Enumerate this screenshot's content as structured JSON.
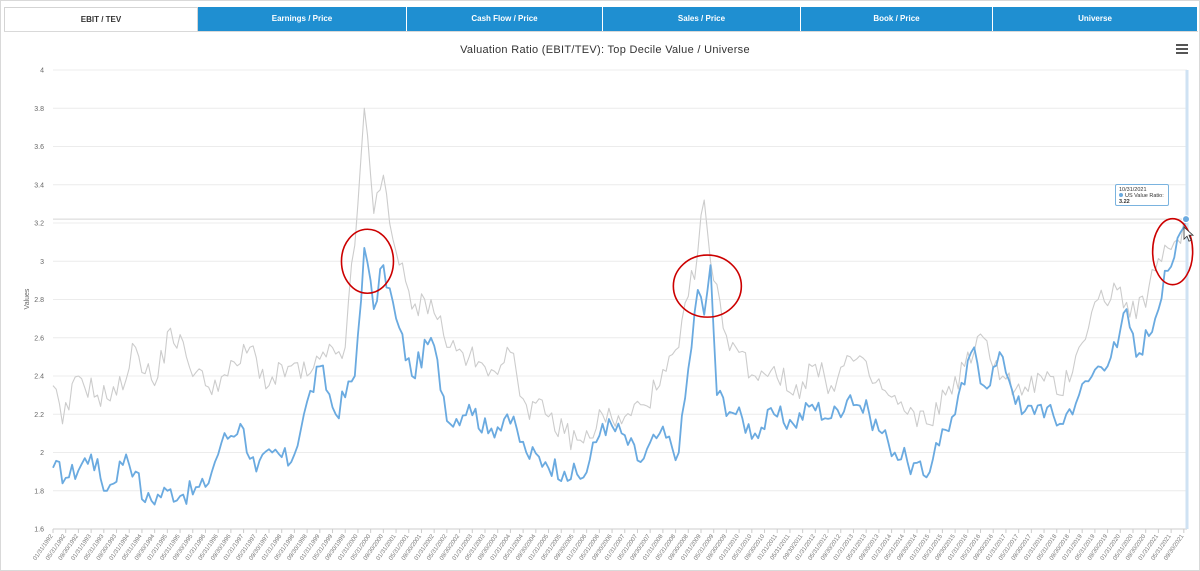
{
  "tabs": [
    {
      "label": "EBIT / TEV",
      "active": true
    },
    {
      "label": "Earnings / Price",
      "active": false
    },
    {
      "label": "Cash Flow / Price",
      "active": false
    },
    {
      "label": "Sales / Price",
      "active": false
    },
    {
      "label": "Book / Price",
      "active": false
    },
    {
      "label": "Universe",
      "active": false
    }
  ],
  "colors": {
    "accent": "#1f8fd1",
    "series_top_decile": "#6aaae0",
    "series_us": "#cccccc",
    "annotation": "#cc0000"
  },
  "tooltip": {
    "date": "10/31/2021",
    "label": "US Value Ratio:",
    "value": "3.22"
  },
  "chart_data": {
    "type": "line",
    "title": "Valuation Ratio (EBIT/TEV): Top Decile Value / Universe",
    "ylabel": "Values",
    "xlabel": "",
    "ylim": [
      1.6,
      4.0
    ],
    "yticks": [
      1.6,
      1.8,
      2,
      2.2,
      2.4,
      2.6,
      2.8,
      3,
      3.2,
      3.4,
      3.6,
      3.8,
      4
    ],
    "grid": true,
    "legend": "none",
    "x_start": "1992-01",
    "x_end": "2021-10",
    "x_tick_labels": [
      "01/31/1992",
      "05/31/1992",
      "09/30/1992",
      "01/31/1993",
      "05/31/1993",
      "09/30/1993",
      "01/31/1994",
      "05/31/1994",
      "09/30/1994",
      "01/31/1995",
      "05/31/1995",
      "09/30/1995",
      "01/31/1996",
      "05/31/1996",
      "09/30/1996",
      "01/31/1997",
      "05/31/1997",
      "09/30/1997",
      "01/31/1998",
      "05/31/1998",
      "09/30/1998",
      "01/31/1999",
      "05/31/1999",
      "09/30/1999",
      "01/31/2000",
      "05/31/2000",
      "09/30/2000",
      "01/31/2001",
      "05/31/2001",
      "09/30/2001",
      "01/31/2002",
      "05/31/2002",
      "09/30/2002",
      "01/31/2003",
      "05/31/2003",
      "09/30/2003",
      "01/31/2004",
      "05/31/2004",
      "09/30/2004",
      "01/31/2005",
      "05/31/2005",
      "09/30/2005",
      "01/31/2006",
      "05/31/2006",
      "09/30/2006",
      "01/31/2007",
      "05/31/2007",
      "09/30/2007",
      "01/31/2008",
      "05/31/2008",
      "09/30/2008",
      "01/31/2009",
      "05/31/2009",
      "09/30/2009",
      "01/31/2010",
      "05/31/2010",
      "09/30/2010",
      "01/31/2011",
      "05/31/2011",
      "09/30/2011",
      "01/31/2012",
      "05/31/2012",
      "09/30/2012",
      "01/31/2013",
      "05/31/2013",
      "09/30/2013",
      "01/31/2014",
      "05/31/2014",
      "09/30/2014",
      "01/31/2015",
      "05/31/2015",
      "09/30/2015",
      "01/31/2016",
      "05/31/2016",
      "09/30/2016",
      "01/31/2017",
      "05/31/2017",
      "09/30/2017",
      "01/31/2018",
      "05/31/2018",
      "09/30/2018",
      "01/31/2019",
      "05/31/2019",
      "09/30/2019",
      "01/31/2020",
      "05/31/2020",
      "09/30/2020",
      "01/31/2021",
      "05/31/2021",
      "09/30/2021"
    ],
    "series": [
      {
        "name": "",
        "color": "#6aaae0",
        "anchors": [
          [
            "1992-01",
            1.92
          ],
          [
            "1992-06",
            1.87
          ],
          [
            "1993-01",
            1.99
          ],
          [
            "1993-06",
            1.8
          ],
          [
            "1993-12",
            1.99
          ],
          [
            "1994-03",
            1.9
          ],
          [
            "1994-06",
            1.74
          ],
          [
            "1995-01",
            1.8
          ],
          [
            "1995-06",
            1.78
          ],
          [
            "1996-01",
            1.82
          ],
          [
            "1996-06",
            2.05
          ],
          [
            "1996-12",
            2.15
          ],
          [
            "1997-05",
            1.9
          ],
          [
            "1997-10",
            2.0
          ],
          [
            "1998-04",
            1.95
          ],
          [
            "1998-08",
            2.2
          ],
          [
            "1999-01",
            2.45
          ],
          [
            "1999-06",
            2.2
          ],
          [
            "1999-12",
            2.4
          ],
          [
            "2000-03",
            3.07
          ],
          [
            "2000-06",
            2.75
          ],
          [
            "2000-09",
            2.98
          ],
          [
            "2001-01",
            2.7
          ],
          [
            "2001-06",
            2.4
          ],
          [
            "2001-12",
            2.6
          ],
          [
            "2002-06",
            2.15
          ],
          [
            "2002-12",
            2.25
          ],
          [
            "2003-06",
            2.1
          ],
          [
            "2003-12",
            2.2
          ],
          [
            "2004-06",
            2.0
          ],
          [
            "2004-12",
            1.95
          ],
          [
            "2005-06",
            1.9
          ],
          [
            "2005-12",
            1.87
          ],
          [
            "2006-06",
            2.15
          ],
          [
            "2006-12",
            2.1
          ],
          [
            "2007-06",
            1.95
          ],
          [
            "2007-12",
            2.1
          ],
          [
            "2008-06",
            2.0
          ],
          [
            "2008-12",
            2.85
          ],
          [
            "2009-02",
            2.72
          ],
          [
            "2009-04",
            2.98
          ],
          [
            "2009-06",
            2.3
          ],
          [
            "2009-12",
            2.2
          ],
          [
            "2010-06",
            2.1
          ],
          [
            "2010-12",
            2.2
          ],
          [
            "2011-06",
            2.15
          ],
          [
            "2011-12",
            2.25
          ],
          [
            "2012-06",
            2.18
          ],
          [
            "2012-12",
            2.3
          ],
          [
            "2013-06",
            2.2
          ],
          [
            "2013-12",
            2.05
          ],
          [
            "2014-06",
            1.95
          ],
          [
            "2014-12",
            1.87
          ],
          [
            "2015-03",
            2.05
          ],
          [
            "2015-09",
            2.2
          ],
          [
            "2016-03",
            2.55
          ],
          [
            "2016-06",
            2.35
          ],
          [
            "2016-12",
            2.5
          ],
          [
            "2017-06",
            2.2
          ],
          [
            "2017-12",
            2.25
          ],
          [
            "2018-06",
            2.15
          ],
          [
            "2018-12",
            2.3
          ],
          [
            "2019-06",
            2.45
          ],
          [
            "2019-12",
            2.55
          ],
          [
            "2020-03",
            2.75
          ],
          [
            "2020-06",
            2.5
          ],
          [
            "2020-12",
            2.7
          ],
          [
            "2021-03",
            2.95
          ],
          [
            "2021-06",
            3.02
          ],
          [
            "2021-10",
            3.22
          ]
        ]
      },
      {
        "name": "",
        "color": "#cccccc",
        "anchors": [
          [
            "1992-01",
            2.35
          ],
          [
            "1992-04",
            2.15
          ],
          [
            "1992-09",
            2.4
          ],
          [
            "1993-03",
            2.3
          ],
          [
            "1993-09",
            2.3
          ],
          [
            "1994-03",
            2.55
          ],
          [
            "1994-09",
            2.35
          ],
          [
            "1995-02",
            2.65
          ],
          [
            "1995-07",
            2.5
          ],
          [
            "1996-01",
            2.35
          ],
          [
            "1996-08",
            2.4
          ],
          [
            "1997-03",
            2.55
          ],
          [
            "1997-09",
            2.35
          ],
          [
            "1998-03",
            2.45
          ],
          [
            "1998-09",
            2.4
          ],
          [
            "1999-03",
            2.5
          ],
          [
            "1999-09",
            2.55
          ],
          [
            "2000-01",
            3.3
          ],
          [
            "2000-03",
            3.8
          ],
          [
            "2000-06",
            3.25
          ],
          [
            "2000-09",
            3.45
          ],
          [
            "2001-01",
            3.05
          ],
          [
            "2001-06",
            2.75
          ],
          [
            "2001-12",
            2.8
          ],
          [
            "2002-06",
            2.55
          ],
          [
            "2002-12",
            2.5
          ],
          [
            "2003-06",
            2.4
          ],
          [
            "2003-12",
            2.55
          ],
          [
            "2004-06",
            2.25
          ],
          [
            "2004-12",
            2.2
          ],
          [
            "2005-06",
            2.1
          ],
          [
            "2005-12",
            2.05
          ],
          [
            "2006-06",
            2.2
          ],
          [
            "2006-12",
            2.15
          ],
          [
            "2007-06",
            2.25
          ],
          [
            "2007-12",
            2.35
          ],
          [
            "2008-06",
            2.55
          ],
          [
            "2008-12",
            3.05
          ],
          [
            "2009-02",
            3.32
          ],
          [
            "2009-04",
            3.0
          ],
          [
            "2009-08",
            2.65
          ],
          [
            "2009-12",
            2.55
          ],
          [
            "2010-06",
            2.4
          ],
          [
            "2010-12",
            2.45
          ],
          [
            "2011-06",
            2.3
          ],
          [
            "2011-12",
            2.45
          ],
          [
            "2012-06",
            2.35
          ],
          [
            "2012-12",
            2.5
          ],
          [
            "2013-06",
            2.4
          ],
          [
            "2013-12",
            2.3
          ],
          [
            "2014-06",
            2.2
          ],
          [
            "2014-12",
            2.15
          ],
          [
            "2015-06",
            2.3
          ],
          [
            "2015-12",
            2.45
          ],
          [
            "2016-06",
            2.6
          ],
          [
            "2016-12",
            2.4
          ],
          [
            "2017-06",
            2.3
          ],
          [
            "2017-12",
            2.4
          ],
          [
            "2018-06",
            2.3
          ],
          [
            "2018-12",
            2.55
          ],
          [
            "2019-06",
            2.8
          ],
          [
            "2019-12",
            2.85
          ],
          [
            "2020-06",
            2.7
          ],
          [
            "2020-12",
            2.95
          ],
          [
            "2021-06",
            3.1
          ],
          [
            "2021-10",
            3.22
          ]
        ]
      }
    ]
  }
}
